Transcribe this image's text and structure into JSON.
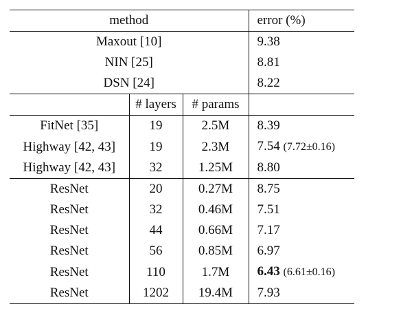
{
  "table": {
    "header": {
      "method": "method",
      "error": "error (%)"
    },
    "subheader": {
      "layers": "# layers",
      "params": "# params"
    },
    "baselines": [
      {
        "method": "Maxout [10]",
        "error": "9.38"
      },
      {
        "method": "NIN [25]",
        "error": "8.81"
      },
      {
        "method": "DSN [24]",
        "error": "8.22"
      }
    ],
    "group1": [
      {
        "method": "FitNet [35]",
        "layers": "19",
        "params": "2.5M",
        "error": "8.39",
        "note": ""
      },
      {
        "method": "Highway [42, 43]",
        "layers": "19",
        "params": "2.3M",
        "error": "7.54",
        "note": "(7.72±0.16)"
      },
      {
        "method": "Highway [42, 43]",
        "layers": "32",
        "params": "1.25M",
        "error": "8.80",
        "note": ""
      }
    ],
    "group2": [
      {
        "method": "ResNet",
        "layers": "20",
        "params": "0.27M",
        "error": "8.75",
        "note": ""
      },
      {
        "method": "ResNet",
        "layers": "32",
        "params": "0.46M",
        "error": "7.51",
        "note": ""
      },
      {
        "method": "ResNet",
        "layers": "44",
        "params": "0.66M",
        "error": "7.17",
        "note": ""
      },
      {
        "method": "ResNet",
        "layers": "56",
        "params": "0.85M",
        "error": "6.97",
        "note": ""
      },
      {
        "method": "ResNet",
        "layers": "110",
        "params": "1.7M",
        "error": "6.43",
        "note": "(6.61±0.16)"
      },
      {
        "method": "ResNet",
        "layers": "1202",
        "params": "19.4M",
        "error": "7.93",
        "note": ""
      }
    ]
  }
}
